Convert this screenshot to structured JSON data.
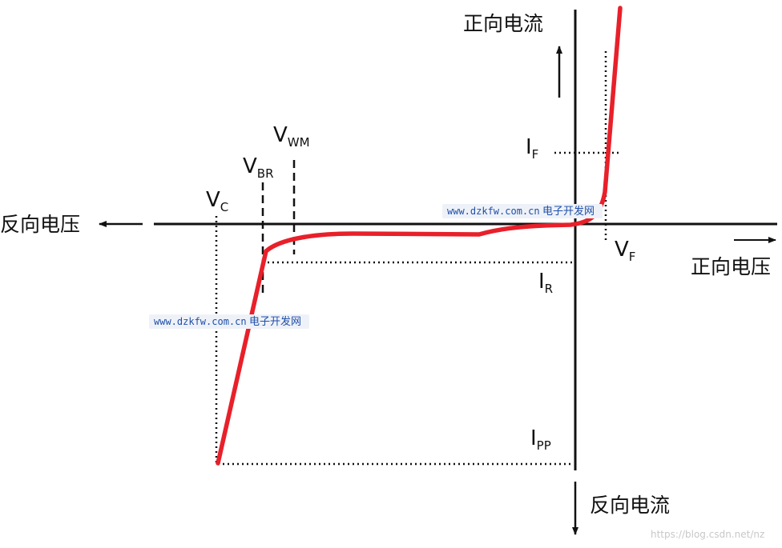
{
  "labels": {
    "forward_current": "正向电流",
    "reverse_current": "反向电流",
    "reverse_voltage": "反向电压",
    "forward_voltage": "正向电压",
    "vc": {
      "main": "V",
      "sub": "C"
    },
    "vbr": {
      "main": "V",
      "sub": "BR"
    },
    "vwm": {
      "main": "V",
      "sub": "WM"
    },
    "if": {
      "main": "I",
      "sub": "F"
    },
    "vf": {
      "main": "V",
      "sub": "F"
    },
    "ir": {
      "main": "I",
      "sub": "R"
    },
    "ipp": {
      "main": "I",
      "sub": "PP"
    }
  },
  "watermarks": {
    "top": {
      "site": "www.dzkfw.com.cn",
      "name": "电子开发网"
    },
    "middle": {
      "site": "www.dzkfw.com.cn",
      "name": "电子开发网"
    },
    "corner": "https://blog.csdn.net/nz"
  },
  "colors": {
    "curve": "#e8202a",
    "axis": "#111111",
    "watermark": "#1f4fa8"
  }
}
